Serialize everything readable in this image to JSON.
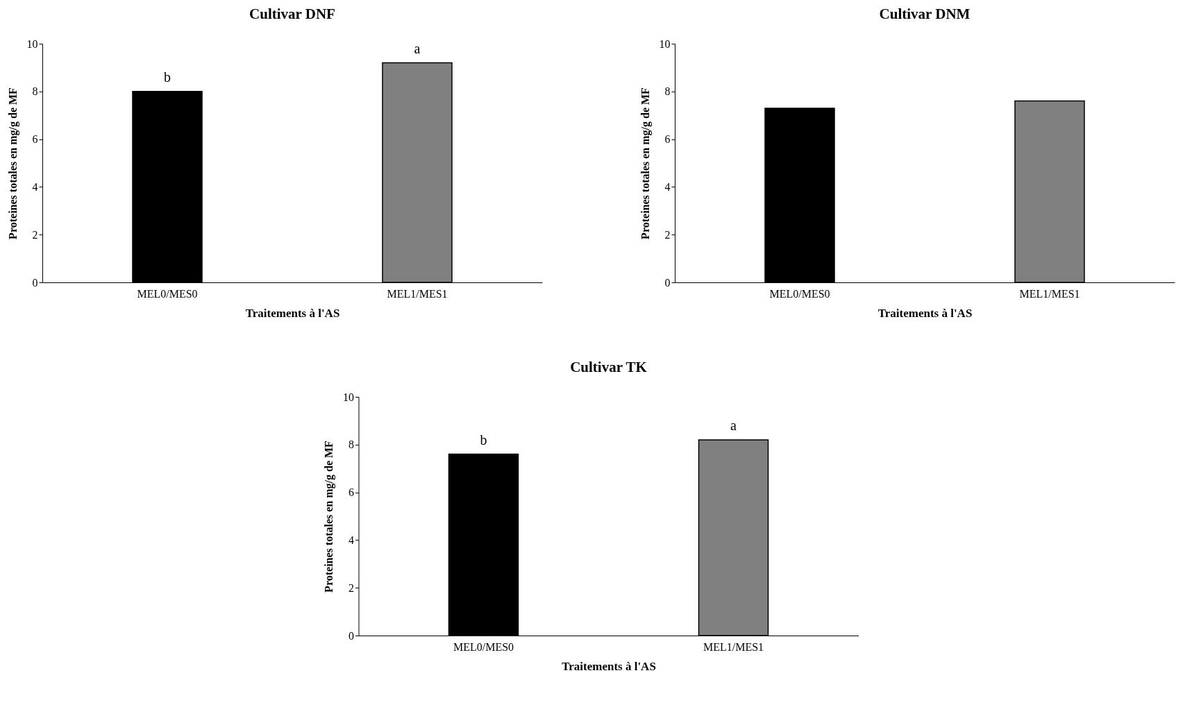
{
  "chart_data": [
    {
      "type": "bar",
      "title": "Cultivar DNF",
      "xlabel": "Traitements à l'AS",
      "ylabel": "Proteines totales en mg/g de MF",
      "categories": [
        "MEL0/MES0",
        "MEL1/MES1"
      ],
      "values": [
        8.0,
        9.2
      ],
      "colors": [
        "#000000",
        "#808080"
      ],
      "ylim": [
        0,
        10
      ],
      "yticks": [
        0,
        2,
        4,
        6,
        8,
        10
      ],
      "grid": false,
      "annotations": [
        {
          "text": "b",
          "x": "MEL0/MES0",
          "y": 8.0
        },
        {
          "text": "a",
          "x": "MEL1/MES1",
          "y": 9.2
        }
      ]
    },
    {
      "type": "bar",
      "title": "Cultivar DNM",
      "xlabel": "Traitements à l'AS",
      "ylabel": "Proteines totales en mg/g de MF",
      "categories": [
        "MEL0/MES0",
        "MEL1/MES1"
      ],
      "values": [
        7.3,
        7.6
      ],
      "colors": [
        "#000000",
        "#808080"
      ],
      "ylim": [
        0,
        10
      ],
      "yticks": [
        0,
        2,
        4,
        6,
        8,
        10
      ],
      "grid": false
    },
    {
      "type": "bar",
      "title": "Cultivar TK",
      "xlabel": "Traitements à l'AS",
      "ylabel": "Proteines totales en mg/g de MF",
      "categories": [
        "MEL0/MES0",
        "MEL1/MES1"
      ],
      "values": [
        7.6,
        8.2
      ],
      "colors": [
        "#000000",
        "#808080"
      ],
      "ylim": [
        0,
        10
      ],
      "yticks": [
        0,
        2,
        4,
        6,
        8,
        10
      ],
      "grid": false,
      "annotations": [
        {
          "text": "b",
          "x": "MEL0/MES0",
          "y": 7.6
        },
        {
          "text": "a",
          "x": "MEL1/MES1",
          "y": 8.2
        }
      ]
    }
  ]
}
